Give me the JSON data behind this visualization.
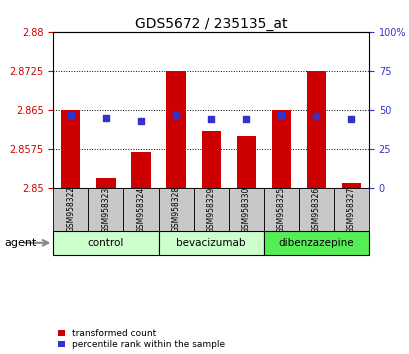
{
  "title": "GDS5672 / 235135_at",
  "samples": [
    "GSM958322",
    "GSM958323",
    "GSM958324",
    "GSM958328",
    "GSM958329",
    "GSM958330",
    "GSM958325",
    "GSM958326",
    "GSM958327"
  ],
  "transformed_counts": [
    2.865,
    2.852,
    2.857,
    2.8725,
    2.861,
    2.86,
    2.865,
    2.8725,
    2.851
  ],
  "percentile_ranks": [
    47,
    45,
    43,
    47,
    44,
    44,
    47,
    46,
    44
  ],
  "ylim_left": [
    2.85,
    2.88
  ],
  "yticks_left": [
    2.85,
    2.8575,
    2.865,
    2.8725,
    2.88
  ],
  "ytick_labels_left": [
    "2.85",
    "2.8575",
    "2.865",
    "2.8725",
    "2.88"
  ],
  "yticks_right": [
    0,
    25,
    50,
    75,
    100
  ],
  "ytick_labels_right": [
    "0",
    "25",
    "50",
    "75",
    "100%"
  ],
  "groups": [
    {
      "label": "control",
      "span": [
        0,
        2
      ],
      "color": "#ccffcc"
    },
    {
      "label": "bevacizumab",
      "span": [
        3,
        5
      ],
      "color": "#ccffcc"
    },
    {
      "label": "dibenzazepine",
      "span": [
        6,
        8
      ],
      "color": "#55ee55"
    }
  ],
  "bar_color": "#cc0000",
  "dot_color": "#3333cc",
  "bar_width": 0.55,
  "background_samples": "#c8c8c8",
  "tick_color_left": "#cc0000",
  "tick_color_right": "#3333cc",
  "legend_red_label": "transformed count",
  "legend_blue_label": "percentile rank within the sample",
  "agent_label": "agent"
}
